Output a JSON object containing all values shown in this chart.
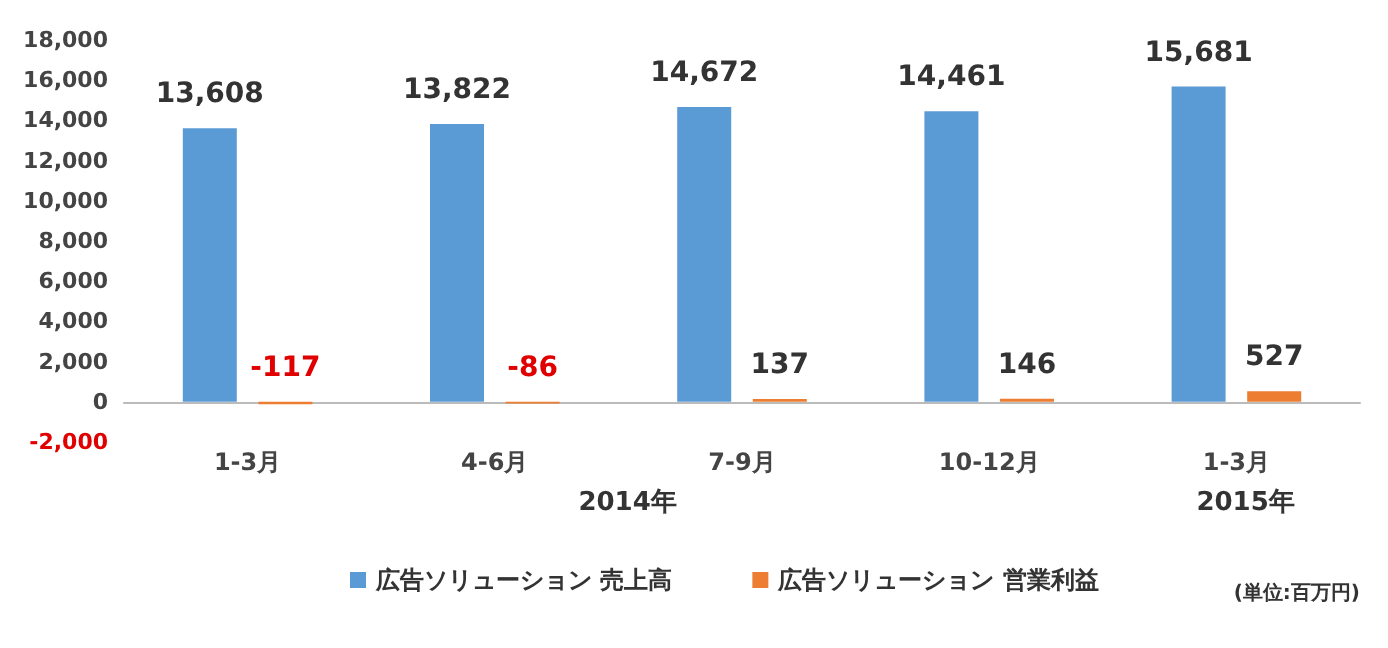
{
  "chart_data": {
    "type": "bar",
    "categories": [
      "1-3月",
      "4-6月",
      "7-9月",
      "10-12月",
      "1-3月"
    ],
    "series": [
      {
        "name": "広告ソリューション 売上高",
        "color": "#5b9bd5",
        "values": [
          13608,
          13822,
          14672,
          14461,
          15681
        ],
        "value_labels": [
          "13,608",
          "13,822",
          "14,672",
          "14,461",
          "15,681"
        ]
      },
      {
        "name": "広告ソリューション 営業利益",
        "color": "#ed7d31",
        "values": [
          -117,
          -86,
          137,
          146,
          527
        ],
        "value_labels": [
          "-117",
          "-86",
          "137",
          "146",
          "527"
        ]
      }
    ],
    "ylim": [
      -2000,
      18000
    ],
    "yticks": [
      {
        "value": -2000,
        "label": "-2,000"
      },
      0,
      {
        "value": 2000,
        "label": "2,000"
      },
      {
        "value": 4000,
        "label": "4,000"
      },
      {
        "value": 6000,
        "label": "6,000"
      },
      {
        "value": 8000,
        "label": "8,000"
      },
      {
        "value": 10000,
        "label": "10,000"
      },
      {
        "value": 12000,
        "label": "12,000"
      },
      {
        "value": 14000,
        "label": "14,000"
      },
      {
        "value": 16000,
        "label": "16,000"
      },
      {
        "value": 18000,
        "label": "18,000"
      }
    ],
    "legend": "bottom",
    "annotations": [
      "2014年",
      "2015年",
      "(単位:百万円)"
    ]
  }
}
